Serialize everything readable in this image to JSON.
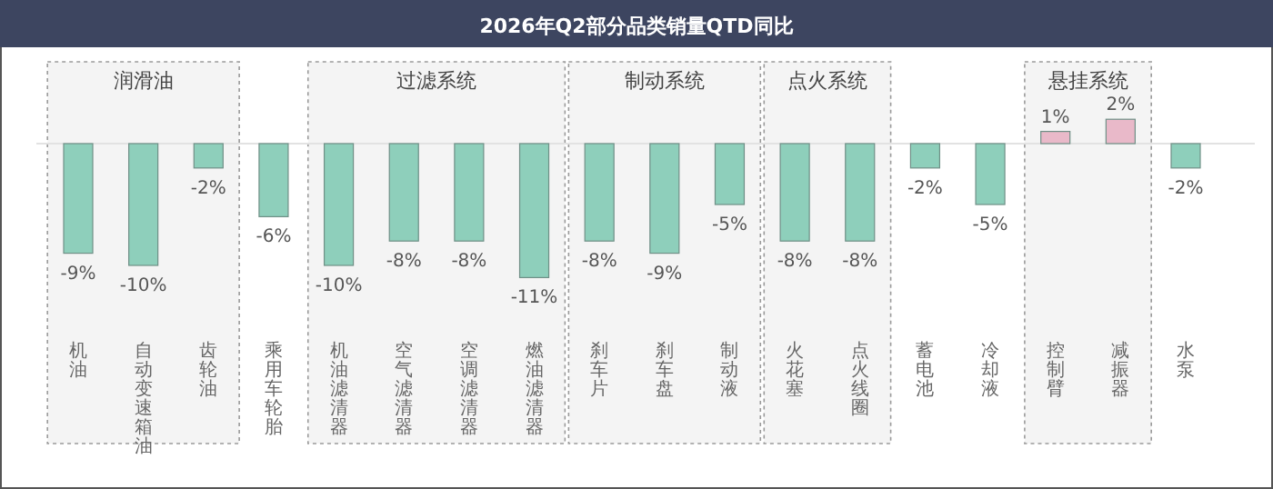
{
  "chart_data": {
    "type": "bar",
    "title": "2026年Q2部分品类销量QTD同比",
    "categories": [
      "机油",
      "自动变速箱油",
      "齿轮油",
      "乘用车轮胎",
      "机油滤清器",
      "空气滤清器",
      "空调滤清器",
      "燃油滤清器",
      "刹车片",
      "刹车盘",
      "制动液",
      "火花塞",
      "点火线圈",
      "蓄电池",
      "冷却液",
      "控制臂",
      "减振器",
      "水泵"
    ],
    "values": [
      -9,
      -10,
      -2,
      -6,
      -10,
      -8,
      -8,
      -11,
      -8,
      -9,
      -5,
      -8,
      -8,
      -2,
      -5,
      1,
      2,
      -2
    ],
    "value_labels": [
      "-9%",
      "-10%",
      "-2%",
      "-6%",
      "-10%",
      "-8%",
      "-8%",
      "-11%",
      "-8%",
      "-9%",
      "-5%",
      "-8%",
      "-8%",
      "-2%",
      "-5%",
      "1%",
      "2%",
      "-2%"
    ],
    "colors": [
      "#8ecfbb",
      "#8ecfbb",
      "#8ecfbb",
      "#8ecfbb",
      "#8ecfbb",
      "#8ecfbb",
      "#8ecfbb",
      "#8ecfbb",
      "#8ecfbb",
      "#8ecfbb",
      "#8ecfbb",
      "#8ecfbb",
      "#8ecfbb",
      "#8ecfbb",
      "#8ecfbb",
      "#e9b9c9",
      "#e9b9c9",
      "#8ecfbb"
    ],
    "bands": [
      {
        "axis": "x",
        "from": "机油",
        "to": "齿轮油",
        "label": "润滑油",
        "color": "#f4f4f4"
      },
      {
        "axis": "x",
        "from": "机油滤清器",
        "to": "燃油滤清器",
        "label": "过滤系统",
        "color": "#f4f4f4"
      },
      {
        "axis": "x",
        "from": "刹车片",
        "to": "制动液",
        "label": "制动系统",
        "color": "#f4f4f4"
      },
      {
        "axis": "x",
        "from": "火花塞",
        "to": "点火线圈",
        "label": "点火系统",
        "color": "#f4f4f4"
      },
      {
        "axis": "x",
        "from": "控制臂",
        "to": "减振器",
        "label": "悬挂系统",
        "color": "#f4f4f4"
      }
    ]
  }
}
